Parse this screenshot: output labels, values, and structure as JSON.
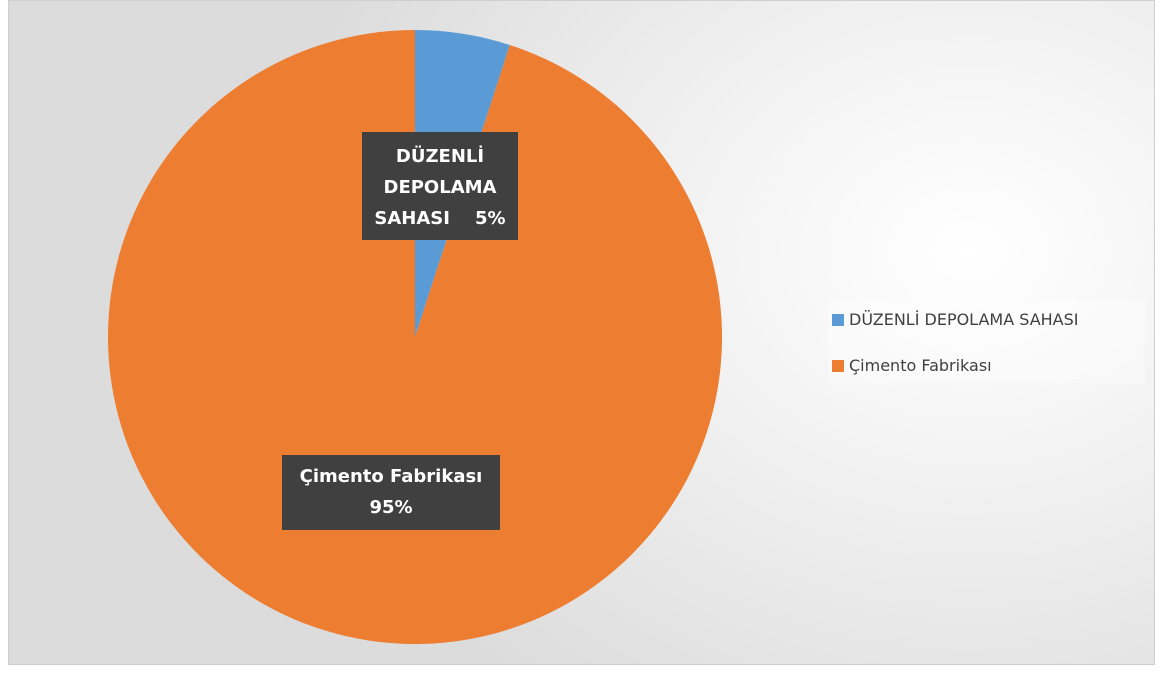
{
  "chart_data": {
    "type": "pie",
    "categories": [
      "DÜZENLİ DEPOLAMA SAHASI",
      "Çimento Fabrikası"
    ],
    "values": [
      5,
      95
    ],
    "value_labels": [
      "5%",
      "95%"
    ],
    "colors": [
      "#5b9bd5",
      "#ed7d31"
    ],
    "legend": "right"
  }
}
